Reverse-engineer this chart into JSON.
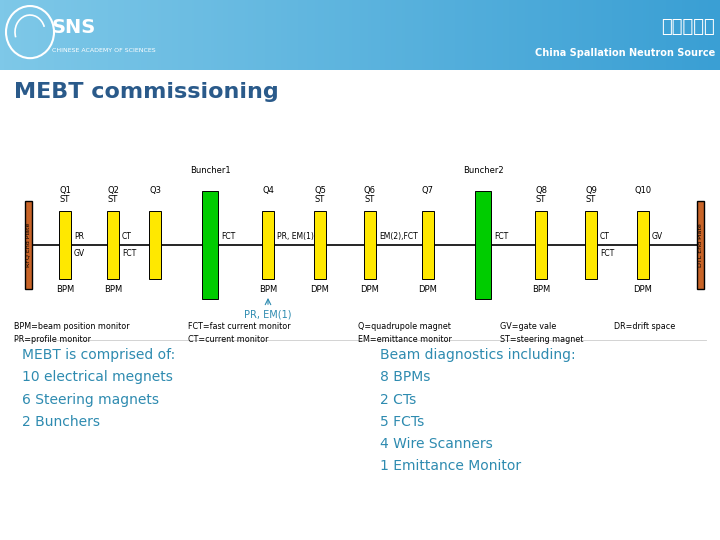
{
  "title": "MEBT commissioning",
  "header_bg_left": "#7ec8e8",
  "header_bg_right": "#3a9fd4",
  "header_text_cn": "散裂中子源",
  "header_text_en": "China Spallation Neutron Source",
  "sns_text": "SNS",
  "body_bg": "#ffffff",
  "text_color": "#2e8bb0",
  "title_color": "#2a5a8a",
  "yellow": "#FFE800",
  "green": "#00CC00",
  "orange": "#C86428",
  "left_text": "MEBT is comprised of:\n10 electrical megnets\n6 Steering magnets\n2 Bunchers",
  "right_text": "Beam diagnostics including:\n8 BPMs\n2 CTs\n5 FCTs\n4 Wire Scanners\n1 Emittance Monitor",
  "pr_em1_label": "PR, EM(1)"
}
